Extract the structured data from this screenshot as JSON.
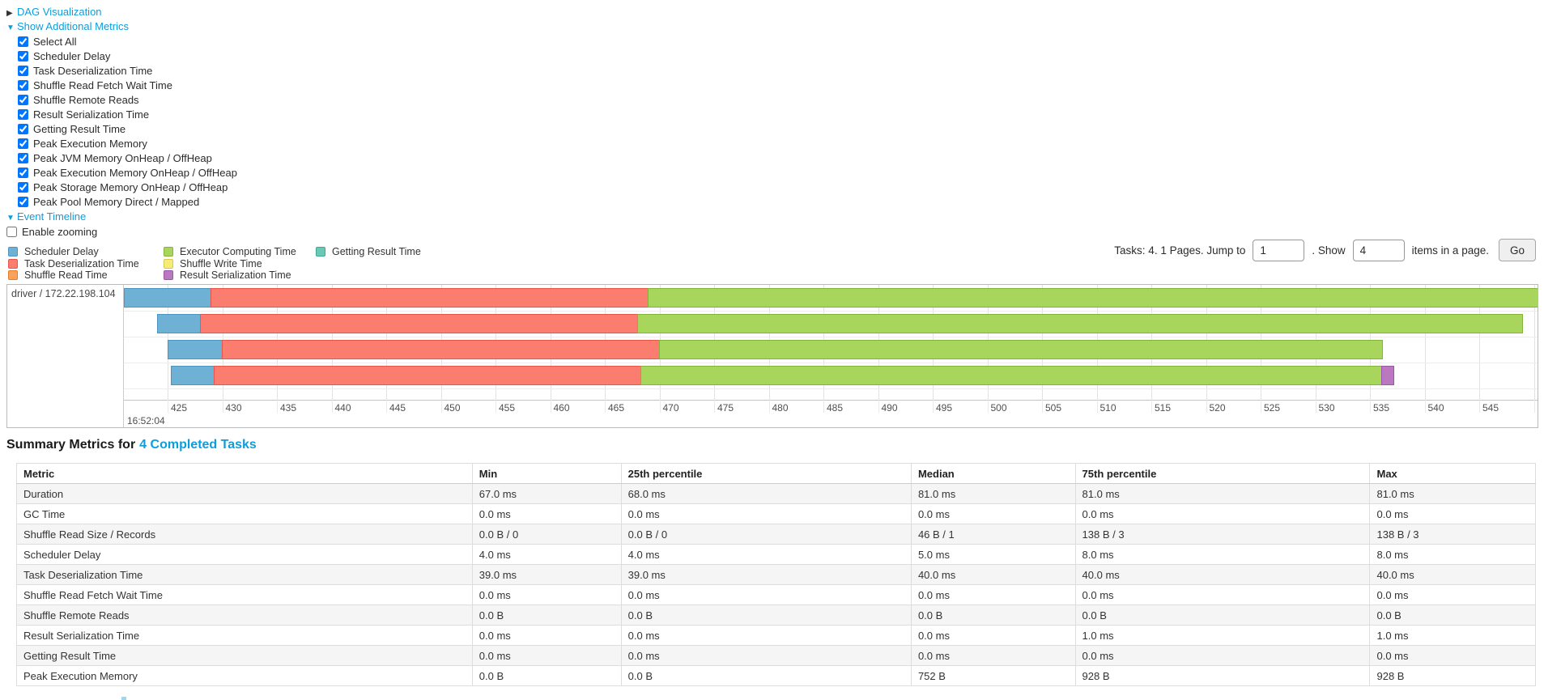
{
  "controls": {
    "dag_toggle": {
      "arrow": "▶",
      "label": "DAG Visualization"
    },
    "metrics_toggle": {
      "arrow": "▼",
      "label": "Show Additional Metrics"
    },
    "metric_checkboxes": [
      {
        "label": "Select All",
        "checked": true
      },
      {
        "label": "Scheduler Delay",
        "checked": true
      },
      {
        "label": "Task Deserialization Time",
        "checked": true
      },
      {
        "label": "Shuffle Read Fetch Wait Time",
        "checked": true
      },
      {
        "label": "Shuffle Remote Reads",
        "checked": true
      },
      {
        "label": "Result Serialization Time",
        "checked": true
      },
      {
        "label": "Getting Result Time",
        "checked": true
      },
      {
        "label": "Peak Execution Memory",
        "checked": true
      },
      {
        "label": "Peak JVM Memory OnHeap / OffHeap",
        "checked": true
      },
      {
        "label": "Peak Execution Memory OnHeap / OffHeap",
        "checked": true
      },
      {
        "label": "Peak Storage Memory OnHeap / OffHeap",
        "checked": true
      },
      {
        "label": "Peak Pool Memory Direct / Mapped",
        "checked": true
      }
    ],
    "timeline_toggle": {
      "arrow": "▼",
      "label": "Event Timeline"
    },
    "enable_zooming": {
      "label": "Enable zooming",
      "checked": false
    }
  },
  "palette": {
    "scheduler_delay": {
      "label": "Scheduler Delay",
      "color": "#6eb1d5",
      "border": "#4e94c0"
    },
    "task_deserialization": {
      "label": "Task Deserialization Time",
      "color": "#fb7d6f",
      "border": "#e8564a"
    },
    "shuffle_read": {
      "label": "Shuffle Read Time",
      "color": "#fca258",
      "border": "#e07e2e"
    },
    "executor_computing": {
      "label": "Executor Computing Time",
      "color": "#a8d65c",
      "border": "#84b33a"
    },
    "shuffle_write": {
      "label": "Shuffle Write Time",
      "color": "#f6eb75",
      "border": "#d9c94a"
    },
    "result_serialization": {
      "label": "Result Serialization Time",
      "color": "#ba78c0",
      "border": "#9e55a5"
    },
    "getting_result": {
      "label": "Getting Result Time",
      "color": "#69c8b6",
      "border": "#43a794"
    }
  },
  "legend": {
    "columns": [
      [
        "scheduler_delay",
        "task_deserialization",
        "shuffle_read"
      ],
      [
        "executor_computing",
        "shuffle_write",
        "result_serialization"
      ],
      [
        "getting_result"
      ]
    ]
  },
  "pagination": {
    "prefix": "Tasks: 4. 1 Pages. Jump to",
    "jump_value": "1",
    "mid": ". Show",
    "show_value": "4",
    "suffix": "items in a page.",
    "go": "Go"
  },
  "chart_data": {
    "type": "timeline",
    "group_label": "driver / 172.22.198.104",
    "axis": {
      "major_label": "16:52:04",
      "unit": "ms",
      "tick_start": 425,
      "tick_end": 550,
      "tick_step": 5,
      "domain_start": 421,
      "domain_end": 550.5,
      "note_last_tick_clipped": "550 label clipped at right edge, only '5' visible"
    },
    "tasks": [
      {
        "segments": [
          [
            "scheduler_delay",
            421.0,
            429.0
          ],
          [
            "task_deserialization",
            429.0,
            469.0
          ],
          [
            "executor_computing",
            469.0,
            550.5
          ]
        ]
      },
      {
        "segments": [
          [
            "scheduler_delay",
            424.0,
            428.0
          ],
          [
            "task_deserialization",
            428.0,
            468.0
          ],
          [
            "executor_computing",
            468.0,
            549.0
          ]
        ]
      },
      {
        "segments": [
          [
            "scheduler_delay",
            425.0,
            430.0
          ],
          [
            "task_deserialization",
            430.0,
            470.0
          ],
          [
            "executor_computing",
            470.0,
            536.2
          ]
        ]
      },
      {
        "segments": [
          [
            "scheduler_delay",
            425.3,
            429.3
          ],
          [
            "task_deserialization",
            429.3,
            468.3
          ],
          [
            "executor_computing",
            468.3,
            536.1
          ],
          [
            "result_serialization",
            536.1,
            537.2
          ]
        ]
      }
    ]
  },
  "summary": {
    "title_prefix": "Summary Metrics for",
    "title_link": "4 Completed Tasks",
    "columns": [
      "Metric",
      "Min",
      "25th percentile",
      "Median",
      "75th percentile",
      "Max"
    ],
    "rows": [
      {
        "metric": "Duration",
        "values": [
          "67.0 ms",
          "68.0 ms",
          "81.0 ms",
          "81.0 ms",
          "81.0 ms"
        ]
      },
      {
        "metric": "GC Time",
        "values": [
          "0.0 ms",
          "0.0 ms",
          "0.0 ms",
          "0.0 ms",
          "0.0 ms"
        ]
      },
      {
        "metric": "Shuffle Read Size / Records",
        "values": [
          "0.0 B / 0",
          "0.0 B / 0",
          "46 B / 1",
          "138 B / 3",
          "138 B / 3"
        ]
      },
      {
        "metric": "Scheduler Delay",
        "values": [
          "4.0 ms",
          "4.0 ms",
          "5.0 ms",
          "8.0 ms",
          "8.0 ms"
        ]
      },
      {
        "metric": "Task Deserialization Time",
        "values": [
          "39.0 ms",
          "39.0 ms",
          "40.0 ms",
          "40.0 ms",
          "40.0 ms"
        ]
      },
      {
        "metric": "Shuffle Read Fetch Wait Time",
        "values": [
          "0.0 ms",
          "0.0 ms",
          "0.0 ms",
          "0.0 ms",
          "0.0 ms"
        ]
      },
      {
        "metric": "Shuffle Remote Reads",
        "values": [
          "0.0 B",
          "0.0 B",
          "0.0 B",
          "0.0 B",
          "0.0 B"
        ]
      },
      {
        "metric": "Result Serialization Time",
        "values": [
          "0.0 ms",
          "0.0 ms",
          "0.0 ms",
          "1.0 ms",
          "1.0 ms"
        ]
      },
      {
        "metric": "Getting Result Time",
        "values": [
          "0.0 ms",
          "0.0 ms",
          "0.0 ms",
          "0.0 ms",
          "0.0 ms"
        ]
      },
      {
        "metric": "Peak Execution Memory",
        "values": [
          "0.0 B",
          "0.0 B",
          "752 B",
          "928 B",
          "928 B"
        ]
      }
    ]
  },
  "colors": {
    "link": "#0d9ddb"
  }
}
